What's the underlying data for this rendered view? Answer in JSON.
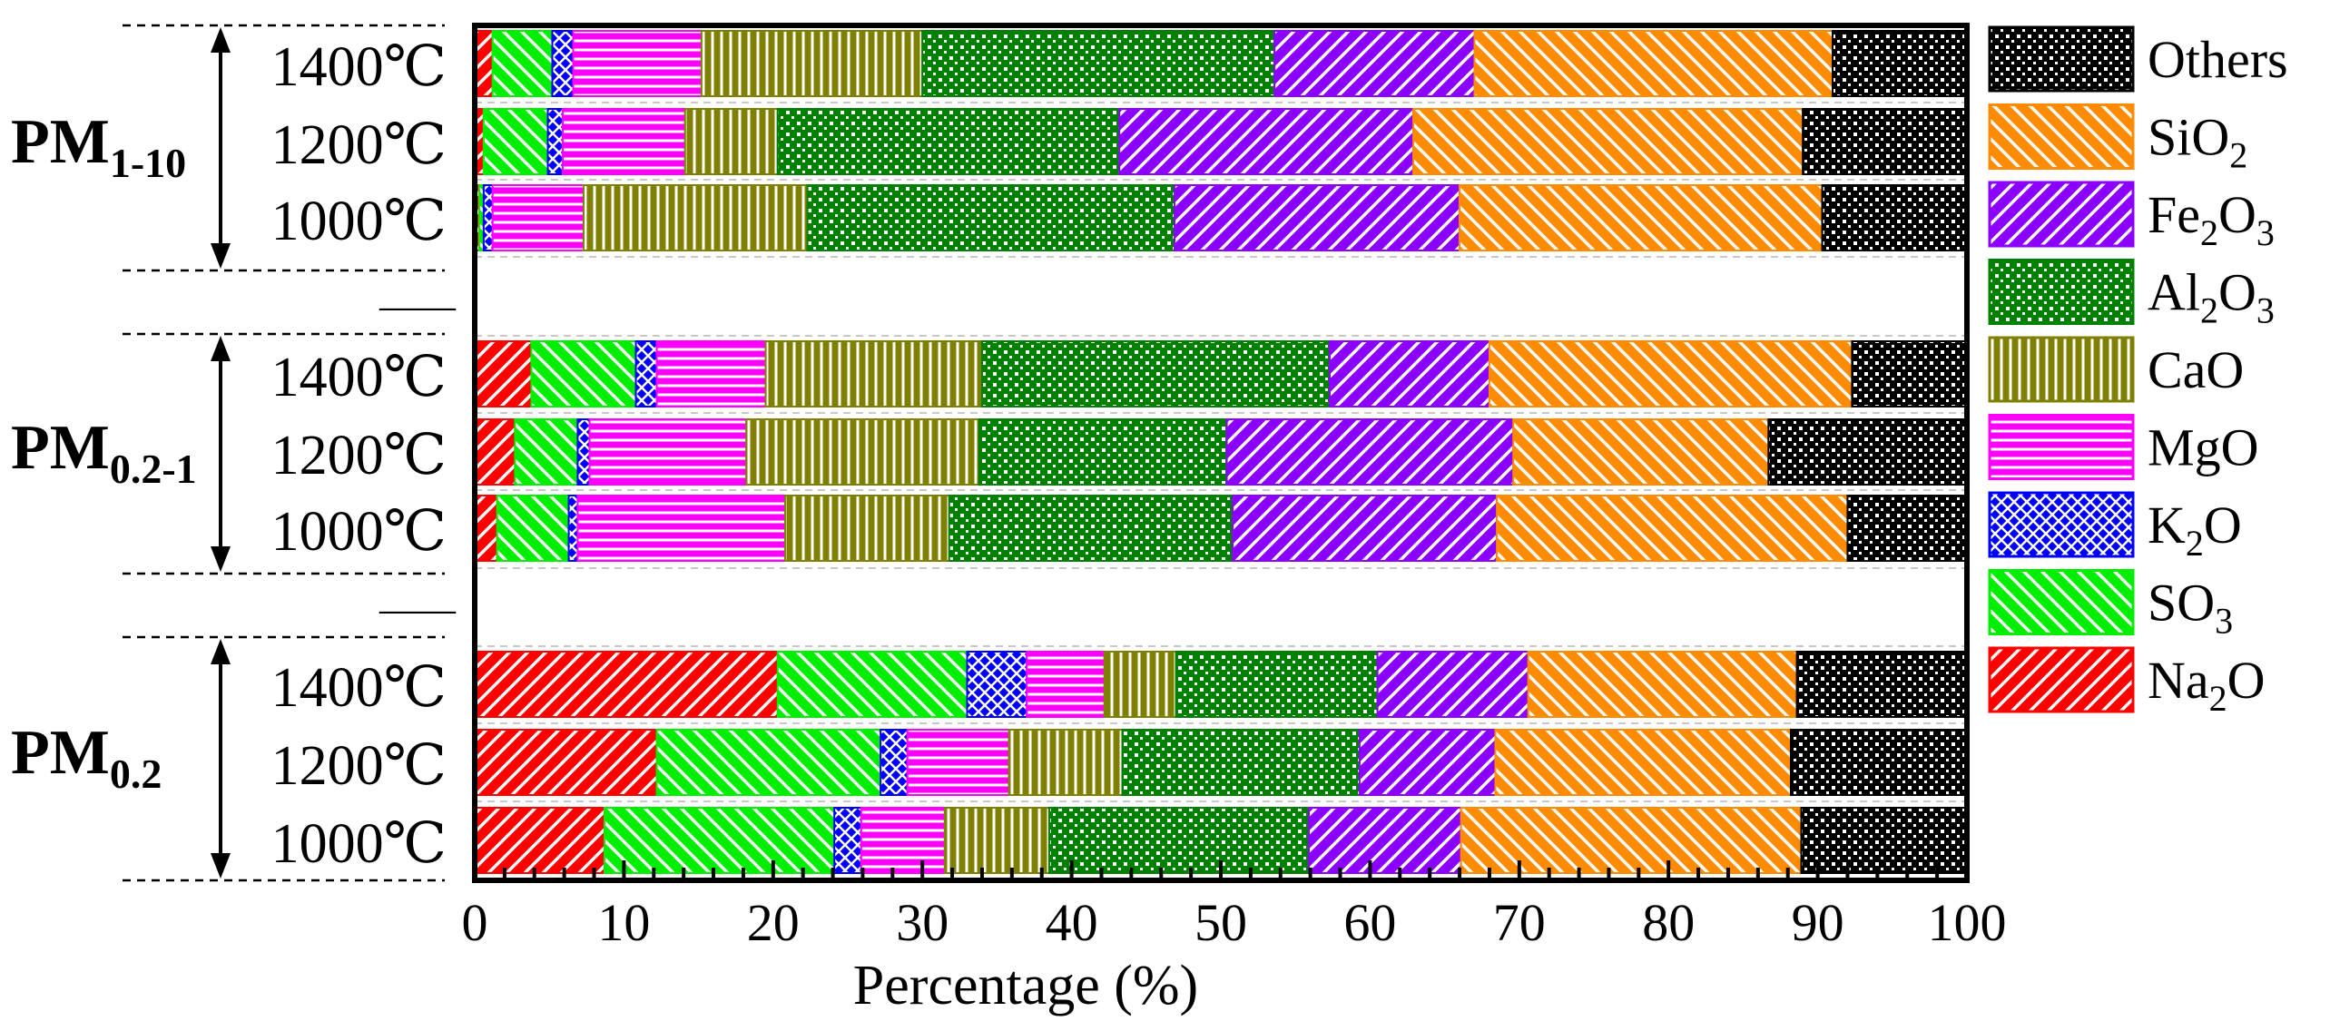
{
  "chart_data": {
    "type": "bar",
    "orientation": "horizontal",
    "stacked": true,
    "xlabel": "Percentage (%)",
    "xlim": [
      0,
      100
    ],
    "xticks": [
      "0",
      "10",
      "20",
      "30",
      "40",
      "50",
      "60",
      "70",
      "80",
      "90",
      "100"
    ],
    "components": [
      {
        "key": "Na2O",
        "label": "Na",
        "sub": "2",
        "tail": "O",
        "color": "#ff0000",
        "pattern": "diag-fwd"
      },
      {
        "key": "SO3",
        "label": "SO",
        "sub": "3",
        "tail": "",
        "color": "#00ee00",
        "pattern": "diag-back"
      },
      {
        "key": "K2O",
        "label": "K",
        "sub": "2",
        "tail": "O",
        "color": "#0000ff",
        "pattern": "crosshatch"
      },
      {
        "key": "MgO",
        "label": "MgO",
        "sub": "",
        "tail": "",
        "color": "#ff00ff",
        "pattern": "horizontal"
      },
      {
        "key": "CaO",
        "label": "CaO",
        "sub": "",
        "tail": "",
        "color": "#808000",
        "pattern": "vertical"
      },
      {
        "key": "Al2O3",
        "label": "Al",
        "sub": "2",
        "tail": "O3",
        "color": "#008000",
        "pattern": "dots-white"
      },
      {
        "key": "Fe2O3",
        "label": "Fe",
        "sub": "2",
        "tail": "O3",
        "color": "#8b00ff",
        "pattern": "diag-fwd"
      },
      {
        "key": "SiO2",
        "label": "SiO",
        "sub": "2",
        "tail": "",
        "color": "#ff8c00",
        "pattern": "diag-back"
      },
      {
        "key": "Others",
        "label": "Others",
        "sub": "",
        "tail": "",
        "color": "#000000",
        "pattern": "dots-white"
      }
    ],
    "groups": [
      {
        "name": "PM",
        "sub": "1-10"
      },
      {
        "name": "PM",
        "sub": "0.2-1"
      },
      {
        "name": "PM",
        "sub": "0.2"
      }
    ],
    "separator_label": "——",
    "bars": [
      {
        "group": 0,
        "label": "1400℃",
        "values": [
          1.2,
          4.0,
          1.4,
          8.6,
          14.8,
          23.6,
          13.4,
          24.0,
          9.0
        ]
      },
      {
        "group": 0,
        "label": "1200℃",
        "values": [
          0.6,
          4.3,
          1.0,
          8.2,
          6.2,
          22.9,
          19.7,
          26.1,
          11.0
        ]
      },
      {
        "group": 0,
        "label": "1000℃",
        "values": [
          0.3,
          0.3,
          0.6,
          6.1,
          15.0,
          24.6,
          19.1,
          24.3,
          9.7
        ]
      },
      {
        "group": 1,
        "label": "1400℃",
        "values": [
          3.8,
          7.0,
          1.4,
          7.3,
          14.5,
          23.3,
          10.7,
          24.3,
          7.7
        ]
      },
      {
        "group": 1,
        "label": "1200℃",
        "values": [
          2.7,
          4.2,
          0.8,
          10.5,
          15.6,
          16.6,
          19.2,
          17.1,
          13.3
        ]
      },
      {
        "group": 1,
        "label": "1000℃",
        "values": [
          1.5,
          4.8,
          0.6,
          13.9,
          11.0,
          19.0,
          17.7,
          23.5,
          8.0
        ]
      },
      {
        "group": 2,
        "label": "1400℃",
        "values": [
          20.3,
          12.7,
          4.0,
          5.2,
          4.8,
          13.5,
          10.1,
          18.0,
          11.4
        ]
      },
      {
        "group": 2,
        "label": "1200℃",
        "values": [
          12.2,
          15.0,
          1.8,
          6.8,
          7.6,
          15.9,
          9.1,
          19.8,
          11.8
        ]
      },
      {
        "group": 2,
        "label": "1000℃",
        "values": [
          8.7,
          15.4,
          1.8,
          5.6,
          7.0,
          17.4,
          10.2,
          22.8,
          11.1
        ]
      }
    ],
    "legend_order": [
      "Others",
      "SiO2",
      "Fe2O3",
      "Al2O3",
      "CaO",
      "MgO",
      "K2O",
      "SO3",
      "Na2O"
    ],
    "legend_position": "right"
  }
}
